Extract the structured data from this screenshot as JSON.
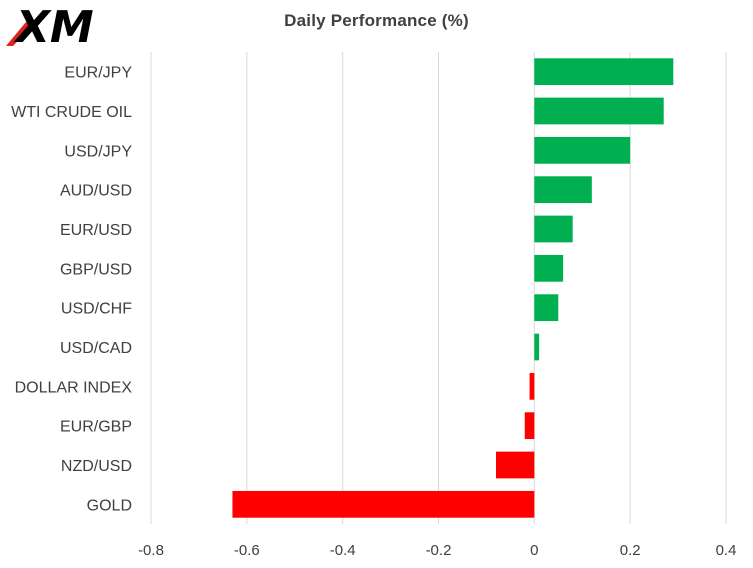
{
  "brand": {
    "logo_text": "XM",
    "logo_color": "#000000",
    "logo_accent": "#d9251d"
  },
  "chart_data": {
    "type": "bar",
    "orientation": "horizontal",
    "title": "Daily Performance (%)",
    "xlabel": "",
    "ylabel": "",
    "categories": [
      "EUR/JPY",
      "WTI CRUDE OIL",
      "USD/JPY",
      "AUD/USD",
      "EUR/USD",
      "GBP/USD",
      "USD/CHF",
      "USD/CAD",
      "DOLLAR INDEX",
      "EUR/GBP",
      "NZD/USD",
      "GOLD"
    ],
    "values": [
      0.29,
      0.27,
      0.2,
      0.12,
      0.08,
      0.06,
      0.05,
      0.01,
      -0.01,
      -0.02,
      -0.08,
      -0.63
    ],
    "xlim": [
      -0.8,
      0.4
    ],
    "xticks": [
      -0.8,
      -0.6,
      -0.4,
      -0.2,
      0,
      0.2,
      0.4
    ],
    "xtick_labels": [
      "-0.8",
      "-0.6",
      "-0.4",
      "-0.2",
      "0",
      "0.2",
      "0.4"
    ],
    "grid": true,
    "legend": "none",
    "colors": {
      "positive": "#00b050",
      "negative": "#ff0000",
      "grid": "#d9d9d9",
      "text": "#404040"
    }
  }
}
